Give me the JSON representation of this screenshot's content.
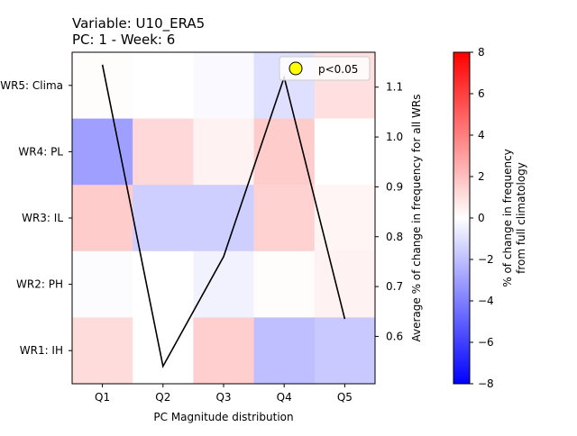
{
  "chart_data": {
    "type": "heatmap",
    "title_line1": "Variable: U10_ERA5",
    "title_line2": "PC: 1 - Week: 6",
    "xlabel": "PC Magnitude distribution",
    "ylabel_right": "Average % of change in frequency for all WRs",
    "categories": [
      "Q1",
      "Q2",
      "Q3",
      "Q4",
      "Q5"
    ],
    "rows": [
      "WR5: Clima",
      "WR4: PL",
      "WR3: IL",
      "WR2: PH",
      "WR1: IH"
    ],
    "matrix": [
      [
        0.1,
        0.0,
        -0.2,
        -1.0,
        1.0
      ],
      [
        -3.0,
        1.2,
        0.4,
        1.6,
        0.0
      ],
      [
        1.6,
        -1.5,
        -1.5,
        1.4,
        0.3
      ],
      [
        -0.1,
        0.0,
        -0.4,
        0.1,
        0.4
      ],
      [
        1.1,
        0.0,
        1.5,
        -2.0,
        -1.7
      ]
    ],
    "line": {
      "values": [
        1.145,
        0.54,
        0.76,
        1.12,
        0.635
      ],
      "ylim": [
        0.505,
        1.17
      ],
      "ticks": [
        "0.6",
        "0.7",
        "0.8",
        "0.9",
        "1.0",
        "1.1"
      ]
    },
    "legend": {
      "label": "p<0.05",
      "placement": "top-right",
      "marker_color": "#ffff00"
    },
    "colorbar": {
      "min": -8,
      "max": 8,
      "ticks": [
        "8",
        "6",
        "4",
        "2",
        "0",
        "−2",
        "−4",
        "−6",
        "−8"
      ],
      "label_line1": "% of change in frequency",
      "label_line2": "from full climatology"
    }
  }
}
